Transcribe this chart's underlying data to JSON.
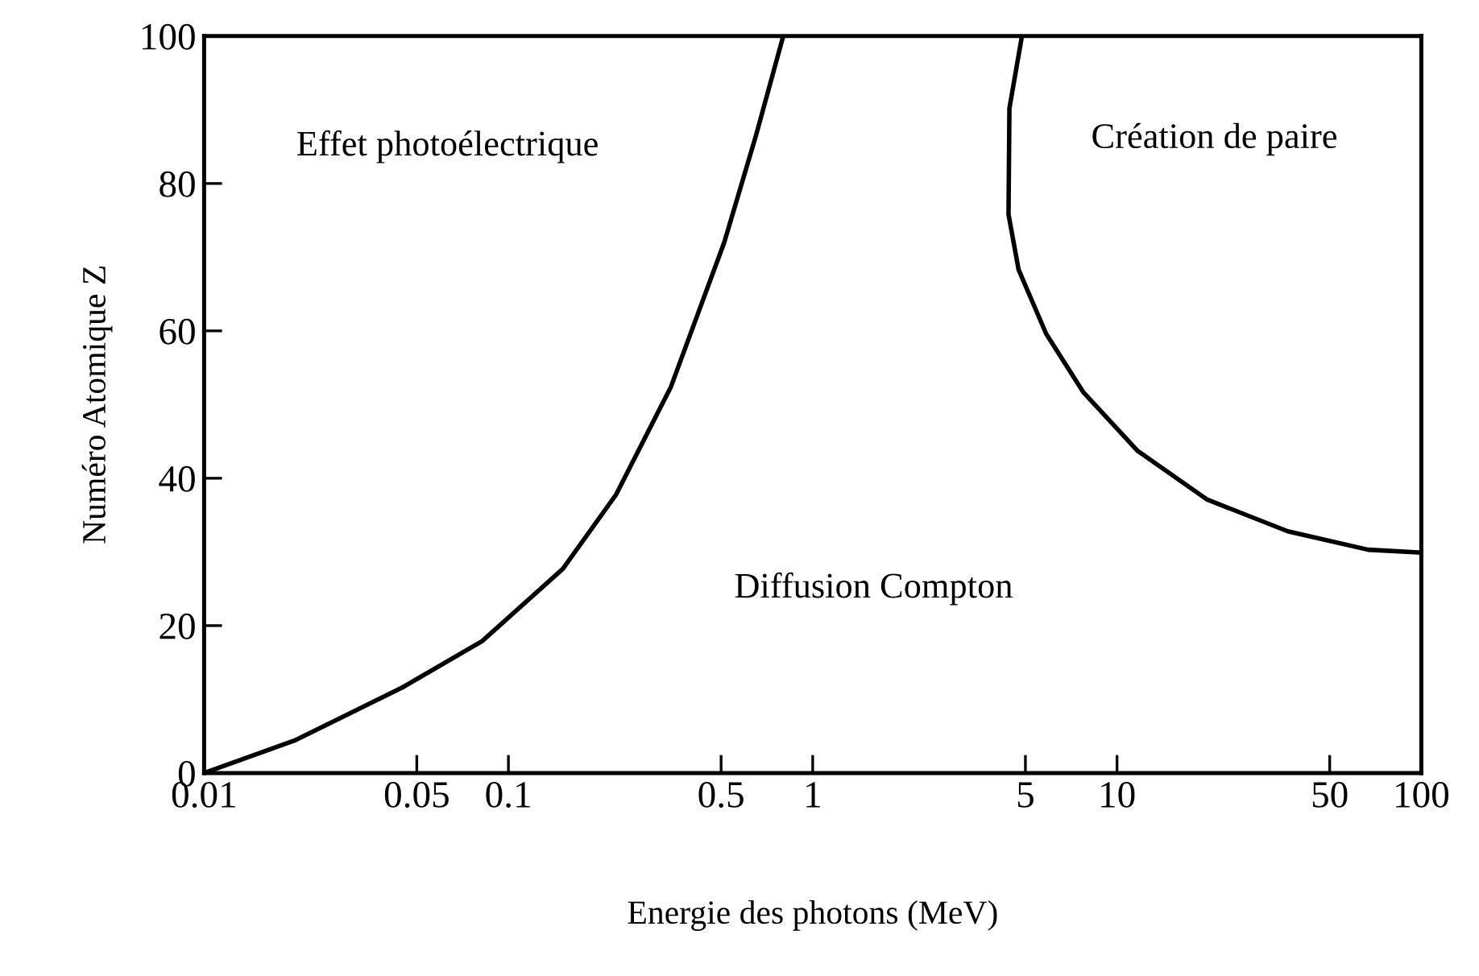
{
  "chart_data": {
    "type": "line",
    "xlabel": "Energie des photons (MeV)",
    "ylabel": "Numéro Atomique Z",
    "log": "x",
    "grid": false,
    "legend": false,
    "marker": "none",
    "line_style": "solid",
    "xlim": [
      0.01,
      100
    ],
    "ylim": [
      0,
      100
    ],
    "xticks": [
      0.01,
      0.05,
      0.1,
      0.5,
      1,
      5,
      10,
      50,
      100
    ],
    "yticks": [
      0,
      20,
      40,
      60,
      80,
      100
    ],
    "series": [
      {
        "color": "#000000",
        "x": [
          0.01,
          0.0198,
          0.0448,
          0.082,
          0.151,
          0.226,
          0.342,
          0.512,
          0.653,
          0.8
        ],
        "values": [
          0,
          4.4,
          11.6,
          17.9,
          27.7,
          37.8,
          52.4,
          72,
          86.7,
          100
        ]
      },
      {
        "color": "#000000",
        "x": [
          4.87,
          4.43,
          4.4,
          4.75,
          5.85,
          7.74,
          11.7,
          19.8,
          36.4,
          66.8,
          100
        ],
        "values": [
          100,
          90.2,
          75.8,
          68.3,
          59.6,
          51.7,
          43.7,
          37.1,
          32.8,
          30.3,
          29.9
        ]
      }
    ],
    "annotations": [
      "Effet photoélectrique",
      "Création de paire",
      "Diffusion Compton"
    ]
  }
}
